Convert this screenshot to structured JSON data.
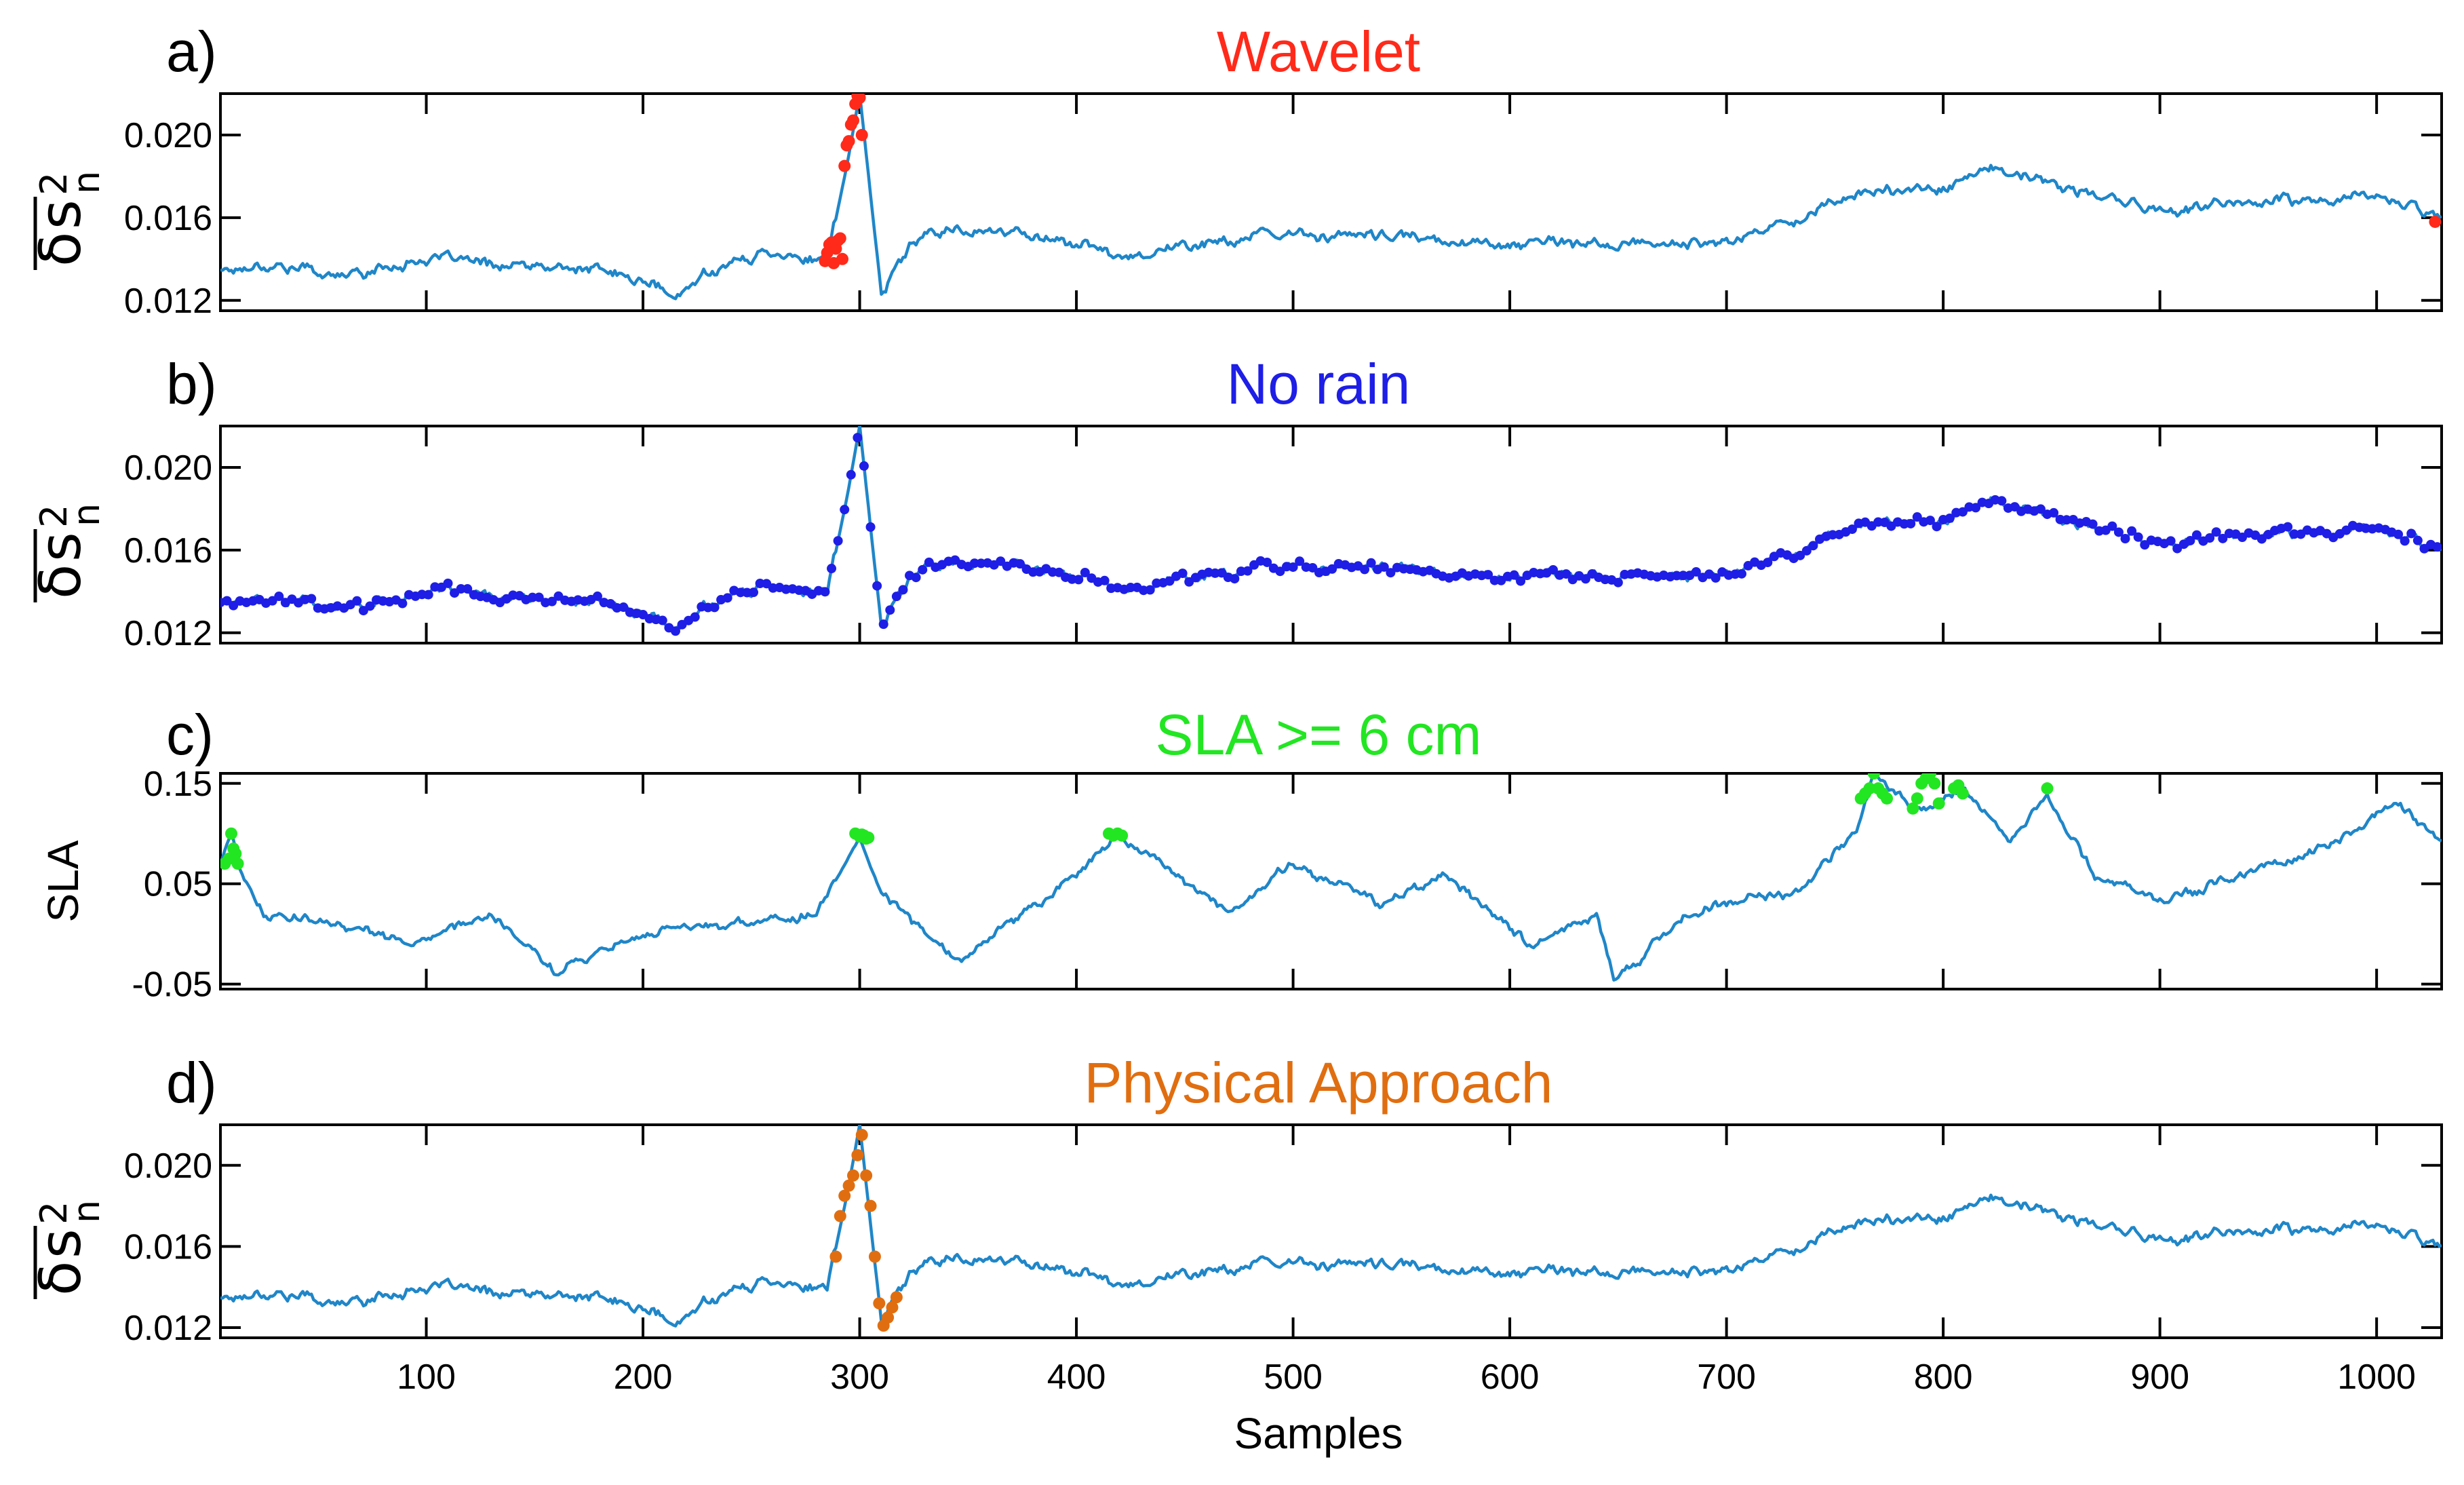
{
  "colors": {
    "line": "#1f86c8",
    "wavelet": "#ff2a1a",
    "norain": "#1e1ee6",
    "sla": "#22e622",
    "physical": "#e06e10"
  },
  "xlabel": "Samples",
  "x_ticks": [
    "100",
    "200",
    "300",
    "400",
    "500",
    "600",
    "700",
    "800",
    "900",
    "1000"
  ],
  "chart_data": [
    {
      "type": "line",
      "panel": "a)",
      "title": "Wavelet",
      "title_color": "#ff2a1a",
      "ylabel_symbol": "δ",
      "ylabel_var": "s",
      "ylabel_sup": "2",
      "ylabel_sub": "n",
      "ylim": [
        0.0115,
        0.022
      ],
      "y_ticks": [
        0.012,
        0.016,
        0.02
      ],
      "y_tick_labels": [
        "0.012",
        "0.016",
        "0.020"
      ],
      "xlim": [
        5,
        1030
      ],
      "series": [
        {
          "style": "line",
          "x": [
            5,
            30,
            60,
            100,
            140,
            180,
            205,
            215,
            230,
            260,
            285,
            295,
            300,
            310,
            330,
            380,
            420,
            500,
            600,
            700,
            760,
            800,
            820,
            900,
            1000,
            1030
          ],
          "values": [
            0.0135,
            0.0138,
            0.0132,
            0.014,
            0.0137,
            0.0134,
            0.0128,
            0.012,
            0.0135,
            0.0144,
            0.0138,
            0.019,
            0.022,
            0.0123,
            0.0155,
            0.0152,
            0.0142,
            0.0152,
            0.0148,
            0.0147,
            0.0172,
            0.0175,
            0.0184,
            0.0163,
            0.017,
            0.0162
          ]
        },
        {
          "style": "markers",
          "color": "#ff2a1a",
          "x": [
            284,
            285,
            286,
            287,
            288,
            289,
            290,
            291,
            292,
            293,
            294,
            295,
            296,
            297,
            298,
            299,
            300,
            301,
            1027
          ],
          "values": [
            0.0139,
            0.0143,
            0.0147,
            0.0148,
            0.0138,
            0.0145,
            0.0149,
            0.015,
            0.014,
            0.0185,
            0.0195,
            0.0197,
            0.0205,
            0.0207,
            0.0215,
            0.0219,
            0.0218,
            0.02,
            0.0158
          ]
        }
      ]
    },
    {
      "type": "line",
      "panel": "b)",
      "title": "No rain",
      "title_color": "#1e1ee6",
      "ylabel_symbol": "δ",
      "ylabel_var": "s",
      "ylabel_sup": "2",
      "ylabel_sub": "n",
      "ylim": [
        0.0115,
        0.022
      ],
      "y_ticks": [
        0.012,
        0.016,
        0.02
      ],
      "y_tick_labels": [
        "0.012",
        "0.016",
        "0.020"
      ],
      "xlim": [
        5,
        1030
      ],
      "series": [
        {
          "style": "line+markers",
          "marker_color": "#1e1ee6",
          "x": [
            5,
            30,
            60,
            100,
            140,
            180,
            205,
            215,
            230,
            260,
            285,
            295,
            300,
            310,
            330,
            380,
            420,
            500,
            600,
            700,
            760,
            800,
            820,
            900,
            1000,
            1030
          ],
          "values": [
            0.0135,
            0.0138,
            0.0132,
            0.014,
            0.0137,
            0.0134,
            0.0128,
            0.012,
            0.0135,
            0.0144,
            0.0138,
            0.019,
            0.022,
            0.0123,
            0.0155,
            0.0152,
            0.0142,
            0.0152,
            0.0148,
            0.0147,
            0.0172,
            0.0175,
            0.0184,
            0.0163,
            0.017,
            0.0162
          ]
        }
      ]
    },
    {
      "type": "line",
      "panel": "c)",
      "title": "SLA >= 6 cm",
      "title_color": "#22e622",
      "ylabel": "SLA",
      "ylim": [
        -0.055,
        0.16
      ],
      "y_ticks": [
        -0.05,
        0.05,
        0.15
      ],
      "y_tick_labels": [
        "-0.05",
        "0.05",
        "0.15"
      ],
      "xlim": [
        5,
        1030
      ],
      "series": [
        {
          "style": "line",
          "x": [
            5,
            10,
            15,
            25,
            60,
            95,
            130,
            160,
            165,
            200,
            240,
            280,
            300,
            310,
            345,
            400,
            420,
            440,
            470,
            500,
            540,
            570,
            610,
            640,
            648,
            680,
            700,
            730,
            760,
            768,
            790,
            810,
            830,
            848,
            870,
            880,
            900,
            940,
            980,
            1010,
            1030
          ],
          "values": [
            0.07,
            0.1,
            0.06,
            0.02,
            0.01,
            -0.01,
            0.02,
            -0.04,
            -0.03,
            0.0,
            0.01,
            0.02,
            0.095,
            0.04,
            -0.03,
            0.06,
            0.095,
            0.07,
            0.02,
            0.07,
            0.03,
            0.06,
            -0.01,
            0.02,
            -0.05,
            0.02,
            0.03,
            0.04,
            0.1,
            0.16,
            0.12,
            0.145,
            0.09,
            0.14,
            0.06,
            0.05,
            0.03,
            0.06,
            0.09,
            0.13,
            0.09
          ]
        },
        {
          "style": "markers",
          "color": "#22e622",
          "x": [
            7,
            9,
            10,
            11,
            12,
            13,
            298,
            300,
            301,
            302,
            303,
            304,
            415,
            417,
            419,
            421,
            762,
            764,
            766,
            768,
            770,
            772,
            774,
            786,
            788,
            790,
            792,
            794,
            796,
            798,
            805,
            807,
            809,
            848
          ],
          "values": [
            0.07,
            0.075,
            0.1,
            0.085,
            0.08,
            0.07,
            0.1,
            0.097,
            0.099,
            0.098,
            0.095,
            0.096,
            0.1,
            0.098,
            0.1,
            0.098,
            0.135,
            0.14,
            0.145,
            0.16,
            0.145,
            0.14,
            0.135,
            0.125,
            0.135,
            0.15,
            0.155,
            0.16,
            0.15,
            0.13,
            0.145,
            0.148,
            0.14,
            0.145
          ]
        }
      ]
    },
    {
      "type": "line",
      "panel": "d)",
      "title": "Physical Approach",
      "title_color": "#e06e10",
      "ylabel_symbol": "δ",
      "ylabel_var": "s",
      "ylabel_sup": "2",
      "ylabel_sub": "n",
      "ylim": [
        0.0115,
        0.022
      ],
      "y_ticks": [
        0.012,
        0.016,
        0.02
      ],
      "y_tick_labels": [
        "0.012",
        "0.016",
        "0.020"
      ],
      "xlim": [
        5,
        1030
      ],
      "series": [
        {
          "style": "line",
          "x": [
            5,
            30,
            60,
            100,
            140,
            180,
            205,
            215,
            230,
            260,
            285,
            295,
            300,
            310,
            330,
            380,
            420,
            500,
            600,
            700,
            760,
            800,
            820,
            900,
            1000,
            1030
          ],
          "values": [
            0.0135,
            0.0138,
            0.0132,
            0.014,
            0.0137,
            0.0134,
            0.0128,
            0.012,
            0.0135,
            0.0144,
            0.0138,
            0.019,
            0.022,
            0.0123,
            0.0155,
            0.0152,
            0.0142,
            0.0152,
            0.0148,
            0.0147,
            0.0172,
            0.0175,
            0.0184,
            0.0163,
            0.017,
            0.0162
          ]
        },
        {
          "style": "markers",
          "color": "#e06e10",
          "x": [
            289,
            291,
            293,
            295,
            297,
            299,
            301,
            303,
            305,
            307,
            309,
            311,
            313,
            315,
            317
          ],
          "values": [
            0.0155,
            0.0175,
            0.0185,
            0.019,
            0.0195,
            0.0205,
            0.0215,
            0.0195,
            0.018,
            0.0155,
            0.0132,
            0.0121,
            0.0125,
            0.013,
            0.0135
          ]
        }
      ]
    }
  ]
}
